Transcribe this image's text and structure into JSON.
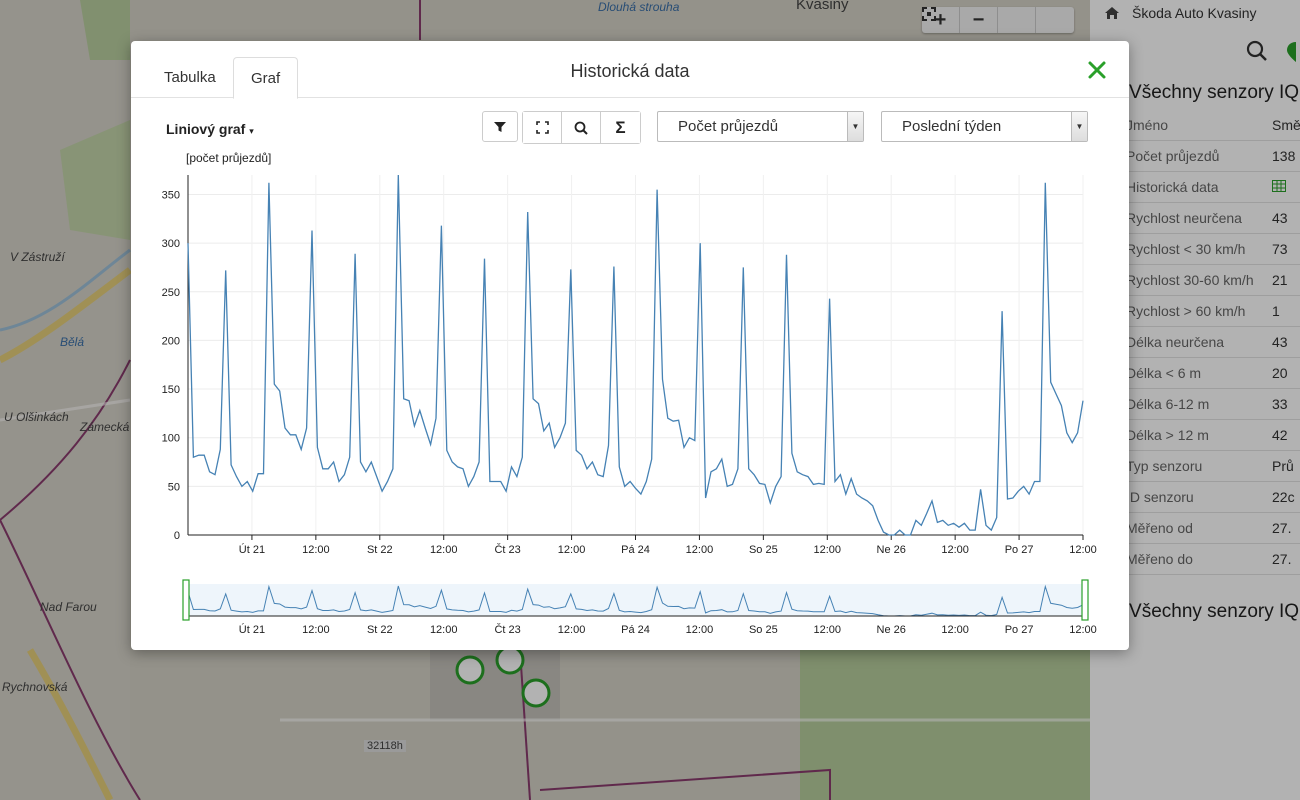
{
  "map": {
    "labels": [
      "Kvasiny",
      "Dlouhá strouha",
      "V Zástruží",
      "Bělá",
      "U Olšinkách",
      "Zámecká",
      "Rychnovská",
      "Nad Farou",
      "32118h"
    ],
    "controls": {
      "zoom_in": "+",
      "zoom_out": "−",
      "fullscreen_icon": "expand-icon",
      "fit_icon": "fit-icon"
    }
  },
  "panel": {
    "breadcrumb": "Škoda Auto Kvasiny",
    "section_title": "Všechny senzory IQ",
    "header": {
      "name": "Jméno",
      "value": "Smě"
    },
    "rows": [
      {
        "label": "Počet průjezdů",
        "value": "138"
      },
      {
        "label": "Historická data",
        "value": ""
      },
      {
        "label": "Rychlost neurčena",
        "value": "43"
      },
      {
        "label": "Rychlost < 30 km/h",
        "value": "73"
      },
      {
        "label": "Rychlost 30-60 km/h",
        "value": "21"
      },
      {
        "label": "Rychlost > 60 km/h",
        "value": "1"
      },
      {
        "label": "Délka neurčena",
        "value": "43"
      },
      {
        "label": "Délka < 6 m",
        "value": "20"
      },
      {
        "label": "Délka 6-12 m",
        "value": "33"
      },
      {
        "label": "Délka > 12 m",
        "value": "42"
      },
      {
        "label": "Typ senzoru",
        "value": "Prů"
      },
      {
        "label": "ID senzoru",
        "value": "22c"
      },
      {
        "label": "Měřeno od",
        "value": "27."
      },
      {
        "label": "Měřeno do",
        "value": "27."
      }
    ],
    "section2_title": "Všechny senzory IQ"
  },
  "modal": {
    "tabs": [
      "Tabulka",
      "Graf"
    ],
    "active_tab": "Graf",
    "title": "Historická data",
    "chart_type_label": "Liniový graf",
    "metric_select": "Počet průjezdů",
    "period_select": "Poslední týden",
    "y_axis_label": "[počet průjezdů]",
    "accent_color": "#2aa02a",
    "line_color": "#4682b4"
  },
  "chart_data": {
    "type": "line",
    "ylabel": "[počet průjezdů]",
    "ylim": [
      0,
      370
    ],
    "yticks": [
      0,
      50,
      100,
      150,
      200,
      250,
      300,
      350
    ],
    "xticks": [
      "Út 21",
      "12:00",
      "St 22",
      "12:00",
      "Čt 23",
      "12:00",
      "Pá 24",
      "12:00",
      "So 25",
      "12:00",
      "Ne 26",
      "12:00",
      "Po 27",
      "12:00"
    ],
    "x_range_days": [
      0,
      7
    ],
    "series": [
      {
        "values": [
          300,
          80,
          82,
          82,
          65,
          62,
          88,
          272,
          72,
          60,
          50,
          55,
          45,
          63,
          63,
          362,
          155,
          148,
          110,
          103,
          103,
          88,
          110,
          313,
          90,
          68,
          68,
          75,
          55,
          62,
          80,
          289,
          75,
          65,
          75,
          60,
          45,
          55,
          68,
          370,
          140,
          138,
          112,
          128,
          110,
          93,
          120,
          318,
          87,
          75,
          70,
          68,
          50,
          60,
          75,
          284,
          55,
          55,
          55,
          45,
          70,
          60,
          80,
          332,
          140,
          135,
          107,
          115,
          90,
          100,
          115,
          273,
          87,
          82,
          68,
          75,
          62,
          60,
          92,
          276,
          70,
          50,
          55,
          48,
          42,
          55,
          78,
          355,
          160,
          120,
          117,
          118,
          90,
          100,
          97,
          300,
          38,
          65,
          68,
          78,
          50,
          52,
          68,
          275,
          68,
          62,
          53,
          52,
          33,
          50,
          60,
          288,
          84,
          65,
          62,
          60,
          52,
          53,
          52,
          243,
          55,
          62,
          42,
          58,
          42,
          38,
          35,
          30,
          15,
          3,
          0,
          0,
          5,
          0,
          0,
          15,
          10,
          22,
          35,
          13,
          15,
          10,
          12,
          8,
          12,
          5,
          5,
          47,
          10,
          5,
          18,
          230,
          37,
          38,
          45,
          50,
          42,
          55,
          55,
          362,
          157,
          145,
          133,
          105,
          95,
          105,
          138
        ]
      }
    ]
  }
}
